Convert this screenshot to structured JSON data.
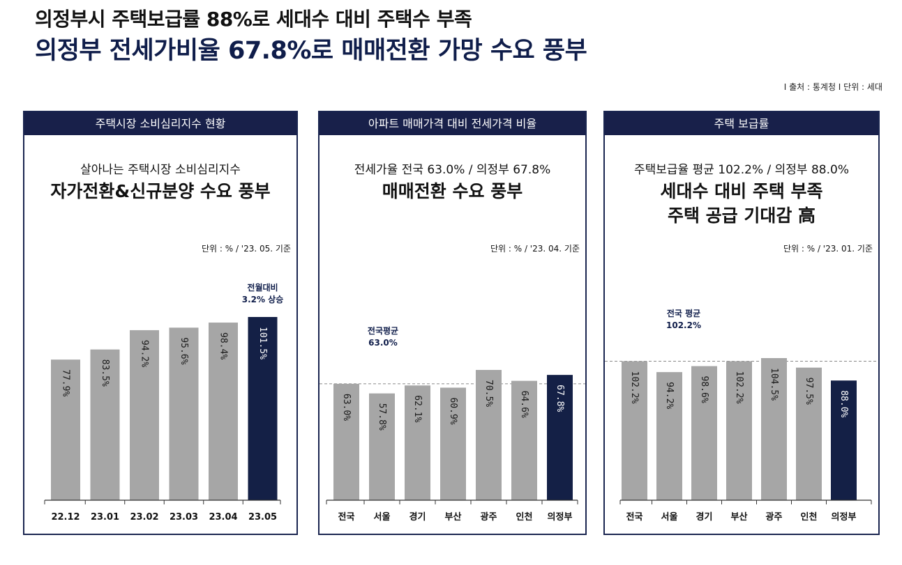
{
  "header": {
    "title_line1": "의정부시 주택보급률 88%로 세대수 대비 주택수 부족",
    "title_line2": "의정부 전세가비율 67.8%로 매매전환 가망 수요 풍부",
    "source": "I 출처 : 통계청 I 단위 : 세대"
  },
  "colors": {
    "bar_gray": "#a6a6a6",
    "bar_navy": "#142046",
    "header_navy": "#18204a"
  },
  "panels": [
    {
      "header": "주택시장 소비심리지수 현황",
      "subtitle": "살아나는 주택시장 소비심리지수",
      "headline": "자가전환&신규분양 수요 풍부",
      "unit": "단위 : % /  '23. 05. 기준"
    },
    {
      "header": "아파트 매매가격 대비 전세가격 비율",
      "subtitle": "전세가율 전국 63.0% / 의정부 67.8%",
      "headline": "매매전환 수요 풍부",
      "unit": "단위 : % /  '23. 04. 기준"
    },
    {
      "header": "주택 보급률",
      "subtitle": "주택보급율 평균 102.2% / 의정부 88.0%",
      "headline": "세대수 대비 주택 부족",
      "headline2": "주택 공급 기대감 高",
      "unit": "단위 : % /  '23. 01. 기준"
    }
  ],
  "chart_data": [
    {
      "type": "bar",
      "categories": [
        "22.12",
        "23.01",
        "23.02",
        "23.03",
        "23.04",
        "23.05"
      ],
      "values": [
        77.9,
        83.5,
        94.2,
        95.6,
        98.4,
        101.5
      ],
      "value_labels": [
        "77.9%",
        "83.5%",
        "94.2%",
        "95.6%",
        "98.4%",
        "101.5%"
      ],
      "highlight_index": 5,
      "annotation": [
        "전월대비",
        "3.2% 상승"
      ],
      "ylim": [
        0,
        120
      ]
    },
    {
      "type": "bar",
      "categories": [
        "전국",
        "서울",
        "경기",
        "부산",
        "광주",
        "인천",
        "의정부"
      ],
      "values": [
        63.0,
        57.8,
        62.1,
        60.9,
        70.5,
        64.6,
        67.8
      ],
      "value_labels": [
        "63.0%",
        "57.8%",
        "62.1%",
        "60.9%",
        "70.5%",
        "64.6%",
        "67.8%"
      ],
      "highlight_index": 6,
      "reference_line": 63.0,
      "annotation": [
        "전국평균",
        "63.0%"
      ],
      "ylim": [
        0,
        84
      ]
    },
    {
      "type": "bar",
      "categories": [
        "전국",
        "서울",
        "경기",
        "부산",
        "광주",
        "인천",
        "의정부"
      ],
      "values": [
        102.2,
        94.2,
        98.6,
        102.2,
        104.5,
        97.5,
        88.0
      ],
      "value_labels": [
        "102.2%",
        "94.2%",
        "98.6%",
        "102.2%",
        "104.5%",
        "97.5%",
        "88.0%"
      ],
      "highlight_index": 6,
      "reference_line": 102.2,
      "annotation": [
        "전국 평균",
        "102.2%"
      ],
      "ylim": [
        0,
        122
      ]
    }
  ]
}
